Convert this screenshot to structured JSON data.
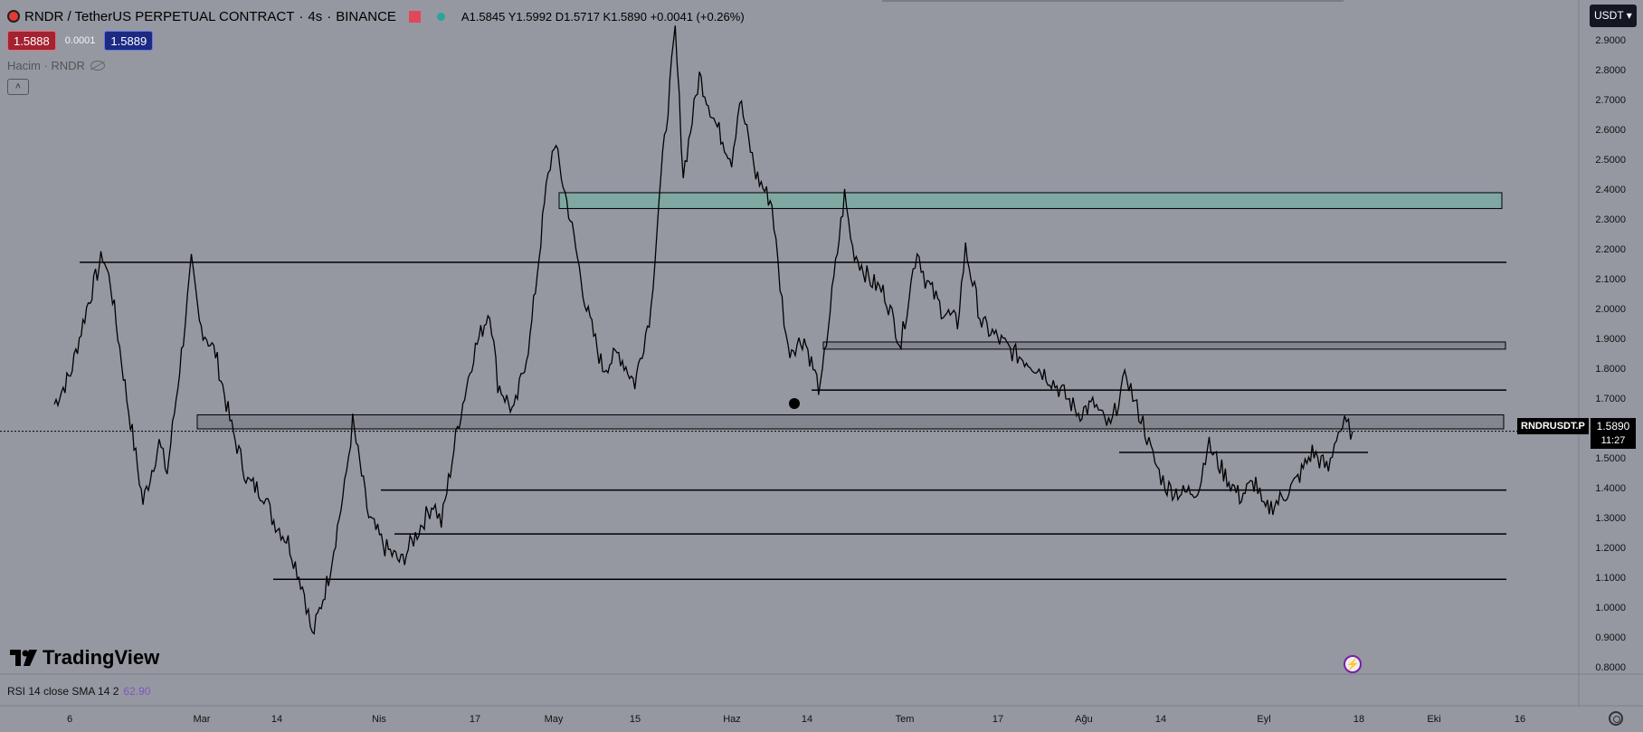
{
  "symbol": {
    "title": "RNDR / TetherUS PERPETUAL CONTRACT",
    "interval": "4s",
    "exchange": "BINANCE",
    "ohlc": "A1.5845 Y1.5992 D1.5717 K1.5890 +0.0041 (+0.26%)"
  },
  "trade": {
    "sell_price": "1.5888",
    "spread": "0.0001",
    "buy_price": "1.5889"
  },
  "volume_label": "Hacim · RNDR",
  "currency": "USDT",
  "last_price": {
    "symbol_tag": "RNDRUSDT.P",
    "price": "1.5890",
    "countdown": "11:27"
  },
  "rsi": {
    "label": "RSI 14 close SMA 14 2",
    "value": "62.90"
  },
  "brand": "TradingView",
  "colors": {
    "background": "#9598a1",
    "zone_fill": "#7fa8a3",
    "line": "#000000",
    "price_marker": "#000000"
  },
  "chart_data": {
    "type": "line",
    "y_ticks": [
      "2.9000",
      "2.8000",
      "2.7000",
      "2.6000",
      "2.5000",
      "2.4000",
      "2.3000",
      "2.2000",
      "2.1000",
      "2.0000",
      "1.9000",
      "1.8000",
      "1.7000",
      "1.6000",
      "1.5000",
      "1.4000",
      "1.3000",
      "1.2000",
      "1.1000",
      "1.0000",
      "0.9000",
      "0.8000"
    ],
    "x_ticks": [
      "6",
      "Mar",
      "14",
      "Nis",
      "17",
      "May",
      "15",
      "Haz",
      "14",
      "Tem",
      "17",
      "Ağu",
      "14",
      "Eyl",
      "18",
      "Eki",
      "16"
    ],
    "ylim": [
      0.76,
      2.95
    ],
    "price_path": [
      [
        0,
        1.68
      ],
      [
        2,
        1.78
      ],
      [
        4,
        2.0
      ],
      [
        6,
        2.18
      ],
      [
        7,
        2.08
      ],
      [
        9,
        1.7
      ],
      [
        11,
        1.35
      ],
      [
        13,
        1.55
      ],
      [
        14,
        1.45
      ],
      [
        16,
        1.9
      ],
      [
        17,
        2.15
      ],
      [
        18,
        1.95
      ],
      [
        20,
        1.85
      ],
      [
        22,
        1.6
      ],
      [
        24,
        1.42
      ],
      [
        26,
        1.38
      ],
      [
        27,
        1.3
      ],
      [
        29,
        1.22
      ],
      [
        31,
        1.05
      ],
      [
        32,
        0.9
      ],
      [
        34,
        1.1
      ],
      [
        36,
        1.4
      ],
      [
        37,
        1.62
      ],
      [
        39,
        1.3
      ],
      [
        41,
        1.2
      ],
      [
        43,
        1.15
      ],
      [
        45,
        1.25
      ],
      [
        47,
        1.35
      ],
      [
        48,
        1.28
      ],
      [
        50,
        1.6
      ],
      [
        52,
        1.85
      ],
      [
        54,
        2.0
      ],
      [
        55,
        1.75
      ],
      [
        57,
        1.65
      ],
      [
        59,
        1.9
      ],
      [
        61,
        2.4
      ],
      [
        62,
        2.56
      ],
      [
        64,
        2.3
      ],
      [
        66,
        2.0
      ],
      [
        68,
        1.8
      ],
      [
        70,
        1.85
      ],
      [
        72,
        1.75
      ],
      [
        74,
        2.0
      ],
      [
        75,
        2.37
      ],
      [
        77,
        2.93
      ],
      [
        78,
        2.45
      ],
      [
        80,
        2.78
      ],
      [
        82,
        2.62
      ],
      [
        84,
        2.5
      ],
      [
        85,
        2.7
      ],
      [
        87,
        2.45
      ],
      [
        89,
        2.35
      ],
      [
        90,
        2.08
      ],
      [
        91,
        1.86
      ],
      [
        93,
        1.9
      ],
      [
        95,
        1.72
      ],
      [
        96,
        1.95
      ],
      [
        98,
        2.38
      ],
      [
        99,
        2.2
      ],
      [
        101,
        2.1
      ],
      [
        103,
        2.05
      ],
      [
        105,
        1.88
      ],
      [
        106,
        2.05
      ],
      [
        107,
        2.2
      ],
      [
        108,
        2.1
      ],
      [
        110,
        2.0
      ],
      [
        112,
        1.95
      ],
      [
        113,
        2.2
      ],
      [
        115,
        1.95
      ],
      [
        117,
        1.9
      ],
      [
        119,
        1.85
      ],
      [
        121,
        1.82
      ],
      [
        123,
        1.78
      ],
      [
        125,
        1.72
      ],
      [
        127,
        1.65
      ],
      [
        129,
        1.68
      ],
      [
        130,
        1.63
      ],
      [
        131,
        1.6
      ],
      [
        132,
        1.7
      ],
      [
        133,
        1.78
      ],
      [
        134,
        1.68
      ],
      [
        135,
        1.62
      ],
      [
        136,
        1.52
      ],
      [
        137,
        1.45
      ],
      [
        138,
        1.4
      ],
      [
        140,
        1.38
      ],
      [
        142,
        1.4
      ],
      [
        143,
        1.55
      ],
      [
        145,
        1.45
      ],
      [
        147,
        1.37
      ],
      [
        149,
        1.42
      ],
      [
        150,
        1.32
      ],
      [
        152,
        1.36
      ],
      [
        154,
        1.42
      ],
      [
        156,
        1.52
      ],
      [
        158,
        1.46
      ],
      [
        159,
        1.58
      ],
      [
        160,
        1.61
      ],
      [
        161,
        1.589
      ]
    ],
    "zones": [
      {
        "from": 2.335,
        "to": 2.388,
        "label": ""
      },
      {
        "from": 1.864,
        "to": 1.888,
        "label": ""
      },
      {
        "from": 1.597,
        "to": 1.644,
        "label": ""
      }
    ],
    "levels": [
      2.155,
      1.727,
      1.518,
      1.392,
      1.245,
      1.093
    ],
    "last_value": 1.589
  }
}
